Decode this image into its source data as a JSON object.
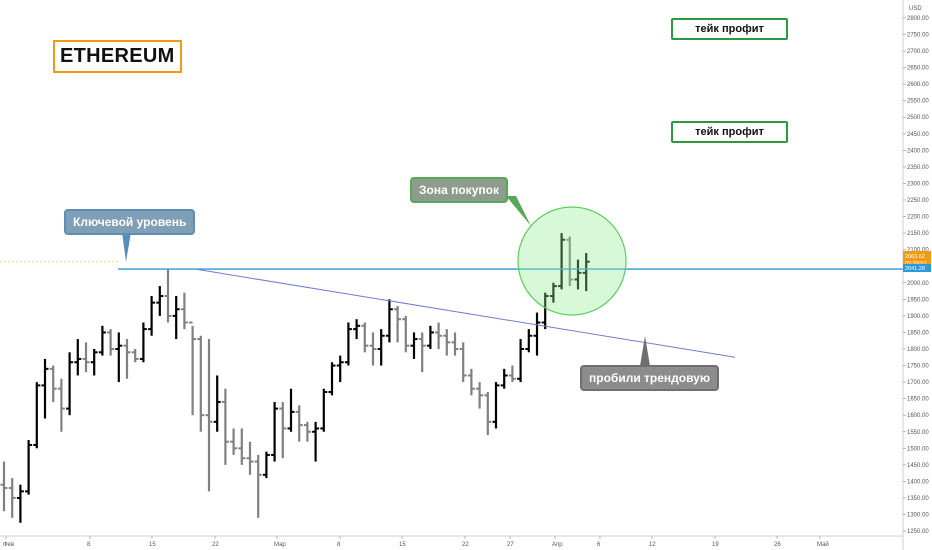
{
  "brand": {
    "title": "ETHEREUM"
  },
  "annotations": {
    "key_level": "Ключевой уровень",
    "buy_zone": "Зона покупок",
    "trend_break": "пробили трендовую",
    "take_profit_1": "тейк профит",
    "take_profit_2": "тейк профит"
  },
  "colors": {
    "up_bar": "#000000",
    "down_bar": "#808080",
    "key_level_line": "#2a9bd8",
    "trendline": "#6f7fc8",
    "price_tag": "#f39c12",
    "level_tag": "#2a9bd8",
    "buy_zone_fill": "#90ee90",
    "take_profit_border": "#2c9a3c",
    "brand_border": "#f29a16"
  },
  "chart_data": {
    "type": "ohlc",
    "symbol": "ETHEREUM",
    "currency": "USD",
    "y_axis_labels": [
      "2800.00",
      "2750.00",
      "2700.00",
      "2650.00",
      "2600.00",
      "2550.00",
      "2500.00",
      "2450.00",
      "2400.00",
      "2350.00",
      "2300.00",
      "2250.00",
      "2200.00",
      "2150.00",
      "2100.00",
      "2050.00",
      "2000.00",
      "1950.00",
      "1900.00",
      "1850.00",
      "1800.00",
      "1750.00",
      "1700.00",
      "1650.00",
      "1600.00",
      "1550.00",
      "1500.00",
      "1450.00",
      "1400.00",
      "1350.00",
      "1300.00",
      "1250.00"
    ],
    "x_axis_labels": [
      "Фев",
      "8",
      "15",
      "22",
      "Мар",
      "8",
      "15",
      "22",
      "27",
      "Апр",
      "6",
      "12",
      "19",
      "26",
      "Май"
    ],
    "ylim": [
      1220,
      2830
    ],
    "current_price_tag": {
      "price": "2063.62",
      "countdown": "02:39:57"
    },
    "key_level_tag": {
      "price": "2041.28"
    },
    "key_level": 2041.28,
    "trendline": [
      {
        "date": "Feb 19",
        "price": 2040
      },
      {
        "date": "Apr 26",
        "price": 1775
      }
    ],
    "bars": [
      {
        "o": 1390,
        "h": 1460,
        "l": 1310,
        "c": 1380
      },
      {
        "o": 1380,
        "h": 1410,
        "l": 1290,
        "c": 1350
      },
      {
        "o": 1350,
        "h": 1390,
        "l": 1275,
        "c": 1370
      },
      {
        "o": 1370,
        "h": 1525,
        "l": 1360,
        "c": 1510
      },
      {
        "o": 1510,
        "h": 1700,
        "l": 1500,
        "c": 1690
      },
      {
        "o": 1690,
        "h": 1770,
        "l": 1590,
        "c": 1740
      },
      {
        "o": 1740,
        "h": 1750,
        "l": 1640,
        "c": 1680
      },
      {
        "o": 1680,
        "h": 1710,
        "l": 1550,
        "c": 1620
      },
      {
        "o": 1620,
        "h": 1790,
        "l": 1600,
        "c": 1760
      },
      {
        "o": 1760,
        "h": 1830,
        "l": 1720,
        "c": 1770
      },
      {
        "o": 1770,
        "h": 1820,
        "l": 1730,
        "c": 1760
      },
      {
        "o": 1760,
        "h": 1800,
        "l": 1720,
        "c": 1790
      },
      {
        "o": 1790,
        "h": 1870,
        "l": 1780,
        "c": 1850
      },
      {
        "o": 1850,
        "h": 1860,
        "l": 1780,
        "c": 1800
      },
      {
        "o": 1800,
        "h": 1850,
        "l": 1700,
        "c": 1810
      },
      {
        "o": 1810,
        "h": 1830,
        "l": 1710,
        "c": 1790
      },
      {
        "o": 1790,
        "h": 1800,
        "l": 1760,
        "c": 1770
      },
      {
        "o": 1770,
        "h": 1880,
        "l": 1760,
        "c": 1860
      },
      {
        "o": 1860,
        "h": 1960,
        "l": 1840,
        "c": 1940
      },
      {
        "o": 1940,
        "h": 1990,
        "l": 1900,
        "c": 1960
      },
      {
        "o": 1960,
        "h": 2040,
        "l": 1880,
        "c": 1900
      },
      {
        "o": 1900,
        "h": 1960,
        "l": 1830,
        "c": 1920
      },
      {
        "o": 1920,
        "h": 1970,
        "l": 1860,
        "c": 1880
      },
      {
        "o": 1880,
        "h": 1870,
        "l": 1600,
        "c": 1830
      },
      {
        "o": 1830,
        "h": 1840,
        "l": 1550,
        "c": 1600
      },
      {
        "o": 1600,
        "h": 1830,
        "l": 1370,
        "c": 1580
      },
      {
        "o": 1580,
        "h": 1720,
        "l": 1550,
        "c": 1640
      },
      {
        "o": 1640,
        "h": 1680,
        "l": 1450,
        "c": 1520
      },
      {
        "o": 1520,
        "h": 1560,
        "l": 1480,
        "c": 1500
      },
      {
        "o": 1500,
        "h": 1560,
        "l": 1450,
        "c": 1470
      },
      {
        "o": 1470,
        "h": 1520,
        "l": 1420,
        "c": 1460
      },
      {
        "o": 1460,
        "h": 1480,
        "l": 1290,
        "c": 1420
      },
      {
        "o": 1420,
        "h": 1490,
        "l": 1410,
        "c": 1480
      },
      {
        "o": 1480,
        "h": 1640,
        "l": 1460,
        "c": 1620
      },
      {
        "o": 1620,
        "h": 1640,
        "l": 1470,
        "c": 1560
      },
      {
        "o": 1560,
        "h": 1680,
        "l": 1550,
        "c": 1610
      },
      {
        "o": 1610,
        "h": 1630,
        "l": 1520,
        "c": 1570
      },
      {
        "o": 1570,
        "h": 1580,
        "l": 1520,
        "c": 1550
      },
      {
        "o": 1550,
        "h": 1580,
        "l": 1460,
        "c": 1560
      },
      {
        "o": 1560,
        "h": 1680,
        "l": 1550,
        "c": 1670
      },
      {
        "o": 1670,
        "h": 1760,
        "l": 1660,
        "c": 1750
      },
      {
        "o": 1750,
        "h": 1780,
        "l": 1700,
        "c": 1760
      },
      {
        "o": 1760,
        "h": 1880,
        "l": 1750,
        "c": 1860
      },
      {
        "o": 1860,
        "h": 1890,
        "l": 1830,
        "c": 1870
      },
      {
        "o": 1870,
        "h": 1880,
        "l": 1790,
        "c": 1810
      },
      {
        "o": 1810,
        "h": 1850,
        "l": 1750,
        "c": 1800
      },
      {
        "o": 1800,
        "h": 1860,
        "l": 1750,
        "c": 1840
      },
      {
        "o": 1840,
        "h": 1950,
        "l": 1820,
        "c": 1920
      },
      {
        "o": 1920,
        "h": 1930,
        "l": 1820,
        "c": 1890
      },
      {
        "o": 1890,
        "h": 1900,
        "l": 1790,
        "c": 1810
      },
      {
        "o": 1810,
        "h": 1850,
        "l": 1770,
        "c": 1830
      },
      {
        "o": 1830,
        "h": 1850,
        "l": 1730,
        "c": 1810
      },
      {
        "o": 1810,
        "h": 1870,
        "l": 1800,
        "c": 1850
      },
      {
        "o": 1850,
        "h": 1880,
        "l": 1800,
        "c": 1840
      },
      {
        "o": 1840,
        "h": 1860,
        "l": 1780,
        "c": 1820
      },
      {
        "o": 1820,
        "h": 1850,
        "l": 1780,
        "c": 1800
      },
      {
        "o": 1800,
        "h": 1820,
        "l": 1700,
        "c": 1720
      },
      {
        "o": 1720,
        "h": 1740,
        "l": 1660,
        "c": 1680
      },
      {
        "o": 1680,
        "h": 1700,
        "l": 1620,
        "c": 1660
      },
      {
        "o": 1660,
        "h": 1670,
        "l": 1540,
        "c": 1580
      },
      {
        "o": 1580,
        "h": 1700,
        "l": 1560,
        "c": 1690
      },
      {
        "o": 1690,
        "h": 1740,
        "l": 1680,
        "c": 1720
      },
      {
        "o": 1720,
        "h": 1750,
        "l": 1700,
        "c": 1710
      },
      {
        "o": 1710,
        "h": 1830,
        "l": 1700,
        "c": 1800
      },
      {
        "o": 1800,
        "h": 1860,
        "l": 1790,
        "c": 1840
      },
      {
        "o": 1840,
        "h": 1910,
        "l": 1780,
        "c": 1880
      },
      {
        "o": 1880,
        "h": 1970,
        "l": 1860,
        "c": 1960
      },
      {
        "o": 1960,
        "h": 2000,
        "l": 1940,
        "c": 1990
      },
      {
        "o": 1990,
        "h": 2150,
        "l": 1980,
        "c": 2130
      },
      {
        "o": 2130,
        "h": 2140,
        "l": 1990,
        "c": 2010
      },
      {
        "o": 2010,
        "h": 2070,
        "l": 1980,
        "c": 2030
      },
      {
        "o": 2030,
        "h": 2090,
        "l": 1975,
        "c": 2063.62
      }
    ]
  }
}
